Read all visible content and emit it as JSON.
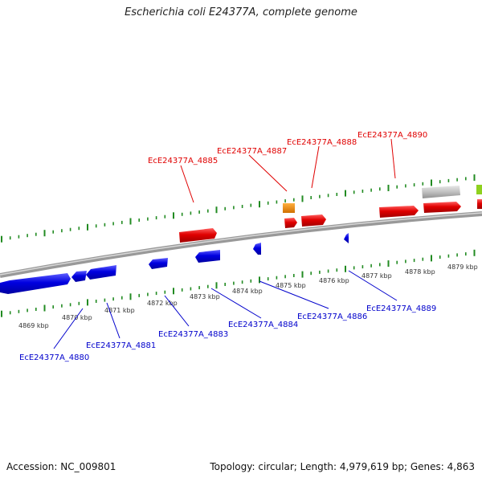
{
  "title": "Escherichia coli E24377A, complete genome",
  "footer": {
    "accession": "Accession: NC_009801",
    "summary": "Topology: circular; Length: 4,979,619 bp; Genes: 4,863"
  },
  "colors": {
    "forward": "#e00000",
    "reverse": "#0000dd",
    "backbone": "#808080",
    "tick": "#228b22",
    "orange": "#f08c00",
    "grey": "#c0c0c0",
    "green": "#8fd11f"
  },
  "scale_labels": [
    "4869 kbp",
    "4870 kbp",
    "4871 kbp",
    "4872 kbp",
    "4873 kbp",
    "4874 kbp",
    "4875 kbp",
    "4876 kbp",
    "4877 kbp",
    "4878 kbp",
    "4879 kbp"
  ],
  "gene_labels_top": [
    "EcE24377A_4885",
    "EcE24377A_4887",
    "EcE24377A_4888",
    "EcE24377A_4890"
  ],
  "gene_labels_bottom": [
    "EcE24377A_4880",
    "EcE24377A_4881",
    "EcE24377A_4883",
    "EcE24377A_4884",
    "EcE24377A_4886",
    "EcE24377A_4889"
  ]
}
